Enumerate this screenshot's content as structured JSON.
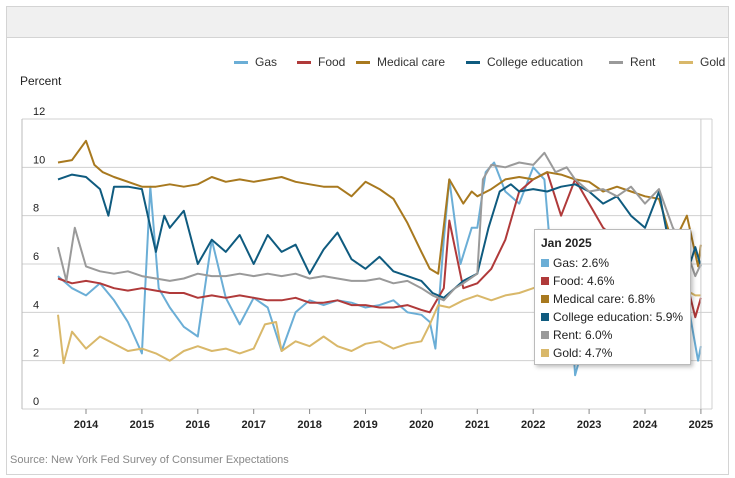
{
  "legend": [
    {
      "name": "Gas",
      "color": "#6baed6"
    },
    {
      "name": "Food",
      "color": "#b03a3a"
    },
    {
      "name": "Medical care",
      "color": "#a8791f"
    },
    {
      "name": "College education",
      "color": "#0f5b7f"
    },
    {
      "name": "Rent",
      "color": "#9a9a9a"
    },
    {
      "name": "Gold",
      "color": "#d9b86a"
    }
  ],
  "tooltip": {
    "title": "Jan 2025",
    "rows": [
      {
        "text": "Gas: 2.6%",
        "color": "#6baed6"
      },
      {
        "text": "Food: 4.6%",
        "color": "#b03a3a"
      },
      {
        "text": "Medical care: 6.8%",
        "color": "#a8791f"
      },
      {
        "text": "College education: 5.9%",
        "color": "#0f5b7f"
      },
      {
        "text": "Rent: 6.0%",
        "color": "#9a9a9a"
      },
      {
        "text": "Gold: 4.7%",
        "color": "#d9b86a"
      }
    ]
  },
  "source": "Source: New York Fed Survey of Consumer Expectations",
  "chart_data": {
    "type": "line",
    "ylabel": "Percent",
    "ylim": [
      0,
      12
    ],
    "yticks": [
      0,
      2,
      4,
      6,
      8,
      10,
      12
    ],
    "xlim": [
      2013.4,
      2025.1
    ],
    "xticks": [
      "2014",
      "2015",
      "2016",
      "2017",
      "2018",
      "2019",
      "2020",
      "2021",
      "2022",
      "2023",
      "2024",
      "2025"
    ],
    "grid": "horizontal",
    "legend_position": "top-right",
    "series": [
      {
        "name": "Gas",
        "color": "#6baed6",
        "x": [
          2013.5,
          2013.75,
          2014.0,
          2014.25,
          2014.5,
          2014.75,
          2015.0,
          2015.15,
          2015.3,
          2015.5,
          2015.75,
          2016.0,
          2016.25,
          2016.5,
          2016.75,
          2017.0,
          2017.25,
          2017.5,
          2017.75,
          2018.0,
          2018.25,
          2018.5,
          2018.75,
          2019.0,
          2019.25,
          2019.5,
          2019.75,
          2020.0,
          2020.15,
          2020.25,
          2020.4,
          2020.5,
          2020.7,
          2020.9,
          2021.0,
          2021.15,
          2021.3,
          2021.5,
          2021.75,
          2022.0,
          2022.2,
          2022.4,
          2022.6,
          2022.75,
          2023.0,
          2023.25,
          2023.5,
          2023.75,
          2024.0,
          2024.25,
          2024.5,
          2024.75,
          2024.95,
          2025.0
        ],
        "y": [
          5.5,
          5.0,
          4.7,
          5.2,
          4.5,
          3.6,
          2.3,
          9.2,
          5.0,
          4.2,
          3.4,
          3.0,
          7.0,
          4.6,
          3.5,
          4.6,
          4.2,
          2.4,
          4.0,
          4.5,
          4.3,
          4.5,
          4.4,
          4.2,
          4.3,
          4.5,
          4.0,
          3.9,
          3.6,
          2.5,
          7.0,
          9.5,
          6.0,
          7.5,
          7.5,
          9.8,
          10.2,
          9.0,
          8.5,
          10.0,
          9.5,
          4.0,
          7.0,
          1.4,
          3.5,
          5.5,
          4.8,
          6.5,
          6.5,
          6.0,
          6.4,
          4.6,
          2.0,
          2.6
        ]
      },
      {
        "name": "Food",
        "color": "#b03a3a",
        "x": [
          2013.5,
          2013.75,
          2014.0,
          2014.25,
          2014.5,
          2014.75,
          2015.0,
          2015.25,
          2015.5,
          2015.75,
          2016.0,
          2016.25,
          2016.5,
          2016.75,
          2017.0,
          2017.25,
          2017.5,
          2017.75,
          2018.0,
          2018.25,
          2018.5,
          2018.75,
          2019.0,
          2019.25,
          2019.5,
          2019.75,
          2020.0,
          2020.15,
          2020.3,
          2020.4,
          2020.5,
          2020.75,
          2021.0,
          2021.25,
          2021.5,
          2021.75,
          2022.0,
          2022.25,
          2022.5,
          2022.75,
          2023.0,
          2023.25,
          2023.5,
          2023.75,
          2024.0,
          2024.25,
          2024.5,
          2024.75,
          2024.9,
          2025.0
        ],
        "y": [
          5.4,
          5.2,
          5.3,
          5.2,
          5.0,
          4.9,
          5.0,
          4.9,
          4.8,
          4.8,
          4.6,
          4.7,
          4.6,
          4.7,
          4.6,
          4.5,
          4.5,
          4.6,
          4.4,
          4.4,
          4.5,
          4.3,
          4.3,
          4.2,
          4.2,
          4.3,
          4.1,
          4.0,
          4.6,
          5.0,
          7.8,
          5.0,
          5.2,
          5.8,
          7.0,
          9.0,
          9.5,
          9.8,
          8.0,
          9.5,
          8.5,
          7.5,
          7.0,
          6.5,
          6.5,
          6.0,
          5.5,
          5.2,
          3.8,
          4.6
        ]
      },
      {
        "name": "Medical care",
        "color": "#a8791f",
        "x": [
          2013.5,
          2013.75,
          2014.0,
          2014.15,
          2014.3,
          2014.5,
          2014.75,
          2015.0,
          2015.25,
          2015.5,
          2015.75,
          2016.0,
          2016.25,
          2016.5,
          2016.75,
          2017.0,
          2017.25,
          2017.5,
          2017.75,
          2018.0,
          2018.25,
          2018.5,
          2018.75,
          2019.0,
          2019.25,
          2019.5,
          2019.75,
          2020.0,
          2020.15,
          2020.3,
          2020.5,
          2020.75,
          2020.9,
          2021.0,
          2021.25,
          2021.5,
          2021.75,
          2022.0,
          2022.25,
          2022.5,
          2022.75,
          2023.0,
          2023.25,
          2023.5,
          2023.75,
          2024.0,
          2024.25,
          2024.5,
          2024.75,
          2024.95,
          2025.0
        ],
        "y": [
          10.2,
          10.3,
          11.1,
          10.1,
          9.8,
          9.6,
          9.4,
          9.2,
          9.2,
          9.3,
          9.2,
          9.3,
          9.6,
          9.4,
          9.5,
          9.4,
          9.5,
          9.6,
          9.4,
          9.3,
          9.2,
          9.2,
          8.8,
          9.4,
          9.1,
          8.7,
          7.7,
          6.5,
          5.8,
          5.6,
          9.5,
          8.5,
          9.0,
          8.8,
          9.1,
          9.5,
          9.6,
          9.5,
          9.8,
          9.7,
          9.5,
          9.4,
          9.0,
          9.2,
          9.0,
          8.8,
          8.7,
          6.8,
          8.0,
          5.9,
          6.8
        ]
      },
      {
        "name": "College education",
        "color": "#0f5b7f",
        "x": [
          2013.5,
          2013.75,
          2014.0,
          2014.25,
          2014.4,
          2014.5,
          2014.75,
          2015.0,
          2015.25,
          2015.4,
          2015.5,
          2015.75,
          2016.0,
          2016.25,
          2016.5,
          2016.75,
          2017.0,
          2017.25,
          2017.5,
          2017.75,
          2018.0,
          2018.25,
          2018.5,
          2018.75,
          2019.0,
          2019.25,
          2019.5,
          2019.75,
          2020.0,
          2020.2,
          2020.4,
          2020.6,
          2020.75,
          2021.0,
          2021.2,
          2021.4,
          2021.6,
          2021.75,
          2022.0,
          2022.25,
          2022.5,
          2022.75,
          2023.0,
          2023.25,
          2023.5,
          2023.75,
          2024.0,
          2024.25,
          2024.5,
          2024.75,
          2024.9,
          2025.0
        ],
        "y": [
          9.5,
          9.7,
          9.6,
          9.1,
          8.0,
          9.2,
          9.2,
          9.1,
          6.5,
          8.0,
          7.5,
          8.2,
          6.0,
          7.0,
          6.5,
          7.2,
          6.0,
          7.2,
          6.5,
          6.8,
          5.6,
          6.6,
          7.3,
          6.2,
          5.8,
          6.3,
          5.7,
          5.5,
          5.3,
          4.8,
          4.6,
          5.0,
          5.3,
          5.6,
          7.5,
          9.0,
          9.3,
          9.0,
          9.1,
          9.0,
          9.2,
          9.3,
          9.0,
          8.5,
          8.8,
          8.0,
          7.5,
          9.0,
          6.0,
          5.6,
          6.7,
          5.9
        ]
      },
      {
        "name": "Rent",
        "color": "#9a9a9a",
        "x": [
          2013.5,
          2013.65,
          2013.8,
          2014.0,
          2014.25,
          2014.5,
          2014.75,
          2015.0,
          2015.25,
          2015.5,
          2015.75,
          2016.0,
          2016.25,
          2016.5,
          2016.75,
          2017.0,
          2017.25,
          2017.5,
          2017.75,
          2018.0,
          2018.25,
          2018.5,
          2018.75,
          2019.0,
          2019.25,
          2019.5,
          2019.75,
          2020.0,
          2020.2,
          2020.4,
          2020.6,
          2020.75,
          2021.0,
          2021.1,
          2021.25,
          2021.5,
          2021.75,
          2022.0,
          2022.2,
          2022.4,
          2022.6,
          2022.75,
          2023.0,
          2023.25,
          2023.5,
          2023.75,
          2024.0,
          2024.25,
          2024.5,
          2024.75,
          2024.9,
          2025.0
        ],
        "y": [
          6.7,
          5.3,
          7.5,
          5.9,
          5.7,
          5.6,
          5.7,
          5.5,
          5.4,
          5.3,
          5.4,
          5.6,
          5.5,
          5.5,
          5.6,
          5.5,
          5.6,
          5.5,
          5.6,
          5.4,
          5.5,
          5.4,
          5.3,
          5.3,
          5.4,
          5.2,
          5.3,
          5.0,
          4.7,
          4.5,
          5.0,
          5.2,
          5.6,
          9.5,
          10.1,
          10.0,
          10.2,
          10.1,
          10.6,
          9.8,
          10.0,
          9.5,
          9.0,
          9.1,
          8.8,
          9.2,
          8.5,
          9.1,
          7.5,
          6.5,
          5.5,
          6.0
        ]
      },
      {
        "name": "Gold",
        "color": "#d9b86a",
        "x": [
          2013.5,
          2013.6,
          2013.75,
          2014.0,
          2014.25,
          2014.5,
          2014.75,
          2015.0,
          2015.25,
          2015.5,
          2015.75,
          2016.0,
          2016.25,
          2016.5,
          2016.75,
          2017.0,
          2017.2,
          2017.4,
          2017.5,
          2017.75,
          2018.0,
          2018.25,
          2018.5,
          2018.75,
          2019.0,
          2019.25,
          2019.5,
          2019.75,
          2020.0,
          2020.15,
          2020.3,
          2020.5,
          2020.75,
          2021.0,
          2021.25,
          2021.5,
          2021.75,
          2022.0,
          2022.25,
          2022.5,
          2022.75,
          2023.0,
          2023.25,
          2023.5,
          2023.75,
          2024.0,
          2024.25,
          2024.5,
          2024.75,
          2024.9,
          2025.0
        ],
        "y": [
          3.9,
          1.9,
          3.2,
          2.5,
          3.0,
          2.7,
          2.4,
          2.5,
          2.3,
          2.0,
          2.4,
          2.6,
          2.4,
          2.5,
          2.3,
          2.5,
          3.5,
          3.6,
          2.4,
          2.8,
          2.6,
          3.0,
          2.6,
          2.4,
          2.7,
          2.8,
          2.5,
          2.7,
          2.8,
          3.5,
          4.3,
          4.2,
          4.5,
          4.7,
          4.5,
          4.7,
          4.8,
          5.0,
          5.2,
          5.0,
          5.2,
          5.0,
          5.3,
          5.0,
          5.2,
          5.0,
          5.1,
          5.3,
          4.9,
          4.7,
          4.7
        ]
      }
    ]
  }
}
